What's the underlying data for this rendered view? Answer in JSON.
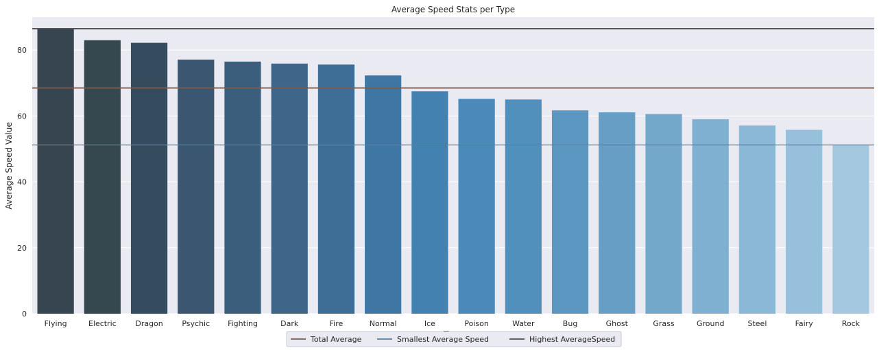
{
  "chart_data": {
    "type": "bar",
    "title": "Average Speed Stats per Type",
    "xlabel": "Type",
    "ylabel": "Average Speed Value",
    "ylim": [
      0,
      90
    ],
    "yticks": [
      0,
      20,
      40,
      60,
      80
    ],
    "grid": true,
    "categories": [
      "Flying",
      "Electric",
      "Dragon",
      "Psychic",
      "Fighting",
      "Dark",
      "Fire",
      "Normal",
      "Ice",
      "Poison",
      "Water",
      "Bug",
      "Ghost",
      "Grass",
      "Ground",
      "Steel",
      "Fairy",
      "Rock"
    ],
    "values": [
      86.5,
      83.0,
      82.2,
      77.1,
      76.5,
      75.9,
      75.6,
      72.3,
      67.5,
      65.2,
      65.0,
      61.7,
      61.1,
      60.6,
      59.0,
      57.1,
      55.8,
      51.2
    ],
    "bar_colors": [
      "#36454f",
      "#35474f",
      "#354c5f",
      "#3a5670",
      "#3c5e7d",
      "#3d6689",
      "#3e6e96",
      "#3f77a4",
      "#4381b0",
      "#4a89b9",
      "#5190bd",
      "#5b97c0",
      "#669ec5",
      "#73a8cb",
      "#7fb0d1",
      "#8ab8d6",
      "#96c0db",
      "#a3c8e0"
    ],
    "reference_lines": [
      {
        "name": "Total Average",
        "value": 68.5,
        "color": "#7a5c4e"
      },
      {
        "name": "Smallest Average Speed",
        "value": 51.2,
        "color": "#5a7fa0"
      },
      {
        "name": "Highest AverageSpeed",
        "value": 86.5,
        "color": "#4f4f4f"
      }
    ],
    "legend_position": "bottom-center"
  }
}
